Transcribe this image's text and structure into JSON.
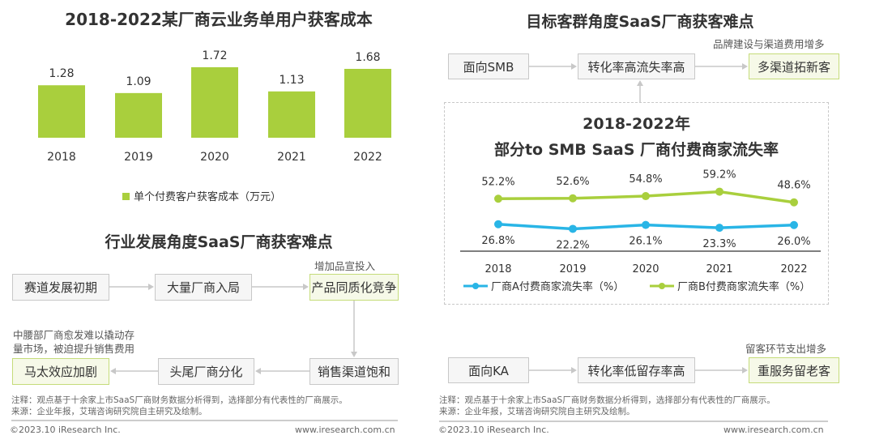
{
  "colors": {
    "green": "#a9cf3d",
    "blue": "#29b5e6",
    "box_border": "#c8c8c8",
    "highlight_border": "#c5dc7a"
  },
  "chart_data": [
    {
      "type": "bar",
      "title": "2018-2022某厂商云业务单用户获客成本",
      "categories": [
        "2018",
        "2019",
        "2020",
        "2021",
        "2022"
      ],
      "series": [
        {
          "name": "单个付费客户获客成本（万元）",
          "values": [
            1.28,
            1.09,
            1.72,
            1.13,
            1.68
          ]
        }
      ],
      "legend": "bottom",
      "grid": false
    },
    {
      "type": "line",
      "title": "2018-2022年",
      "subtitle": "部分to SMB SaaS 厂商付费商家流失率",
      "categories": [
        "2018",
        "2019",
        "2020",
        "2021",
        "2022"
      ],
      "series": [
        {
          "name": "厂商A付费商家流失率（%）",
          "values": [
            26.8,
            22.2,
            26.1,
            23.3,
            26.0
          ],
          "labels": [
            "26.8%",
            "22.2%",
            "26.1%",
            "23.3%",
            "26.0%"
          ]
        },
        {
          "name": "厂商B付费商家流失率（%）",
          "values": [
            52.2,
            52.6,
            54.8,
            59.2,
            48.6
          ],
          "labels": [
            "52.2%",
            "52.6%",
            "54.8%",
            "59.2%",
            "48.6%"
          ]
        }
      ],
      "legend": "bottom",
      "grid": false
    }
  ],
  "industry": {
    "title": "行业发展角度SaaS厂商获客难点",
    "boxes": [
      "赛道发展初期",
      "大量厂商入局",
      "产品同质化竞争",
      "销售渠道饱和",
      "头尾厂商分化",
      "马太效应加剧"
    ],
    "annot_top": "增加品宣投入",
    "annot_left_1": "中腰部厂商愈发难以撬动存",
    "annot_left_2": "量市场，被迫提升销售费用"
  },
  "target": {
    "title": "目标客群角度SaaS厂商获客难点",
    "smb": [
      "面向SMB",
      "转化率高流失率高",
      "多渠道拓新客"
    ],
    "smb_annot": "品牌建设与渠道费用增多",
    "ka": [
      "面向KA",
      "转化率低留存率高",
      "重服务留老客"
    ],
    "ka_annot": "留客环节支出增多"
  },
  "notes": {
    "note": "注释：观点基于十余家上市SaaS厂商财务数据分析得到，选择部分有代表性的厂商展示。",
    "source": "来源：企业年报，艾瑞咨询研究院自主研究及绘制。",
    "copyright": "©2023.10 iResearch Inc.",
    "website": "www.iresearch.com.cn"
  }
}
